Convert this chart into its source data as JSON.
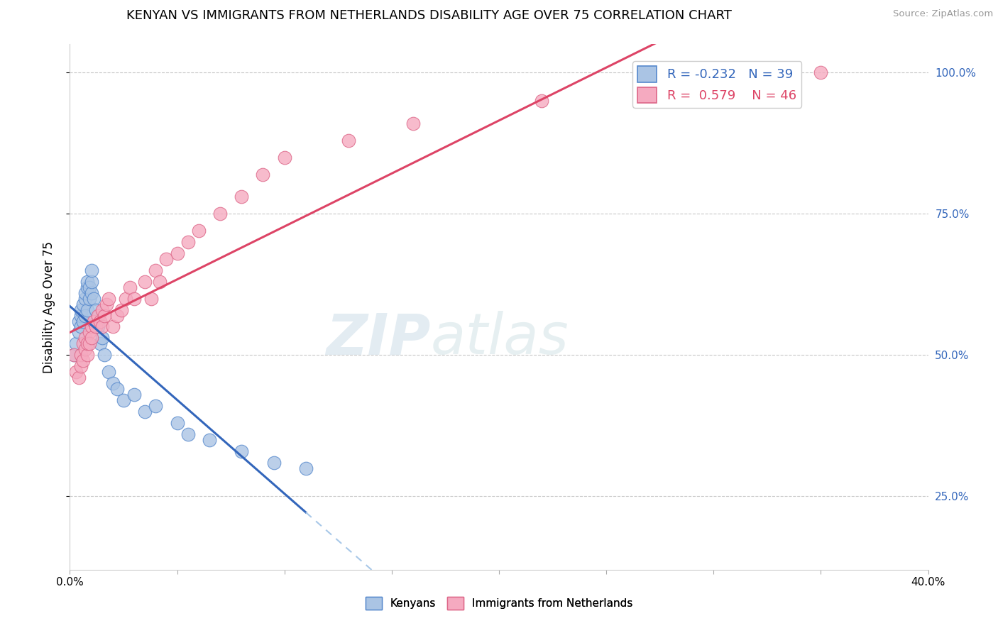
{
  "title": "KENYAN VS IMMIGRANTS FROM NETHERLANDS DISABILITY AGE OVER 75 CORRELATION CHART",
  "source": "Source: ZipAtlas.com",
  "ylabel": "Disability Age Over 75",
  "xlim": [
    0.0,
    0.4
  ],
  "ylim": [
    0.12,
    1.05
  ],
  "yticks": [
    0.25,
    0.5,
    0.75,
    1.0
  ],
  "ytick_labels": [
    "25.0%",
    "50.0%",
    "75.0%",
    "100.0%"
  ],
  "background_color": "#ffffff",
  "grid_color": "#c8c8c8",
  "kenyan_color": "#aac4e4",
  "netherlands_color": "#f5aac0",
  "kenyan_edge_color": "#5588cc",
  "netherlands_edge_color": "#dd6688",
  "trendline_kenyan_color": "#3366bb",
  "trendline_netherlands_color": "#dd4466",
  "legend_R_kenyan": "-0.232",
  "legend_N_kenyan": "39",
  "legend_R_netherlands": "0.579",
  "legend_N_netherlands": "46",
  "kenyan_x": [
    0.002,
    0.003,
    0.004,
    0.004,
    0.005,
    0.005,
    0.005,
    0.006,
    0.006,
    0.007,
    0.007,
    0.007,
    0.008,
    0.008,
    0.008,
    0.009,
    0.009,
    0.01,
    0.01,
    0.01,
    0.011,
    0.012,
    0.013,
    0.014,
    0.015,
    0.016,
    0.018,
    0.02,
    0.022,
    0.025,
    0.03,
    0.035,
    0.04,
    0.05,
    0.055,
    0.065,
    0.08,
    0.095,
    0.11
  ],
  "kenyan_y": [
    0.5,
    0.52,
    0.54,
    0.56,
    0.55,
    0.57,
    0.58,
    0.56,
    0.59,
    0.57,
    0.6,
    0.61,
    0.58,
    0.62,
    0.63,
    0.6,
    0.62,
    0.61,
    0.63,
    0.65,
    0.6,
    0.58,
    0.55,
    0.52,
    0.53,
    0.5,
    0.47,
    0.45,
    0.44,
    0.42,
    0.43,
    0.4,
    0.41,
    0.38,
    0.36,
    0.35,
    0.33,
    0.31,
    0.3
  ],
  "netherlands_x": [
    0.002,
    0.003,
    0.004,
    0.005,
    0.005,
    0.006,
    0.006,
    0.007,
    0.007,
    0.008,
    0.008,
    0.009,
    0.009,
    0.01,
    0.01,
    0.011,
    0.012,
    0.013,
    0.014,
    0.015,
    0.015,
    0.016,
    0.017,
    0.018,
    0.02,
    0.022,
    0.024,
    0.026,
    0.028,
    0.03,
    0.035,
    0.038,
    0.04,
    0.042,
    0.045,
    0.05,
    0.055,
    0.06,
    0.07,
    0.08,
    0.09,
    0.1,
    0.13,
    0.16,
    0.22,
    0.35
  ],
  "netherlands_y": [
    0.5,
    0.47,
    0.46,
    0.48,
    0.5,
    0.49,
    0.52,
    0.51,
    0.53,
    0.5,
    0.52,
    0.54,
    0.52,
    0.55,
    0.53,
    0.56,
    0.55,
    0.57,
    0.56,
    0.58,
    0.55,
    0.57,
    0.59,
    0.6,
    0.55,
    0.57,
    0.58,
    0.6,
    0.62,
    0.6,
    0.63,
    0.6,
    0.65,
    0.63,
    0.67,
    0.68,
    0.7,
    0.72,
    0.75,
    0.78,
    0.82,
    0.85,
    0.88,
    0.91,
    0.95,
    1.0
  ],
  "watermark_ZIP": "ZIP",
  "watermark_atlas": "atlas",
  "title_fontsize": 13,
  "axis_label_fontsize": 12,
  "tick_fontsize": 11,
  "legend_fontsize": 13,
  "right_ytick_color": "#3366bb",
  "dashed_line_color": "#a8c8e8"
}
